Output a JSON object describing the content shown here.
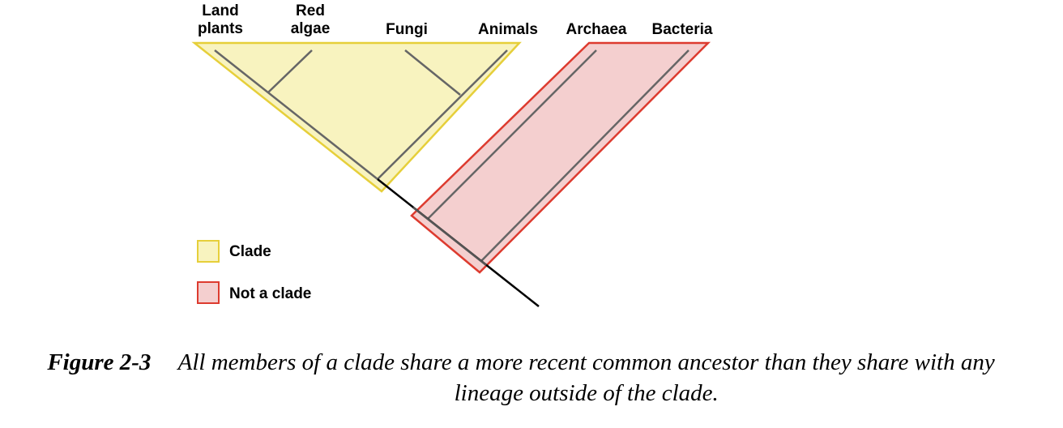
{
  "taxa": [
    {
      "label": "Land\nplants"
    },
    {
      "label": "Red\nalgae"
    },
    {
      "label": "Fungi"
    },
    {
      "label": "Animals"
    },
    {
      "label": "Archaea"
    },
    {
      "label": "Bacteria"
    }
  ],
  "legend": {
    "clade": {
      "label": "Clade",
      "fill": "#f8f3bf",
      "stroke": "#e6cf3a"
    },
    "not_clade": {
      "label": "Not a clade",
      "fill": "#f4cfcf",
      "stroke": "#dd3b2f"
    }
  },
  "caption": {
    "label": "Figure 2-3",
    "text": "All members of a clade share a more recent common ancestor than they share with any lineage outside of the clade."
  }
}
